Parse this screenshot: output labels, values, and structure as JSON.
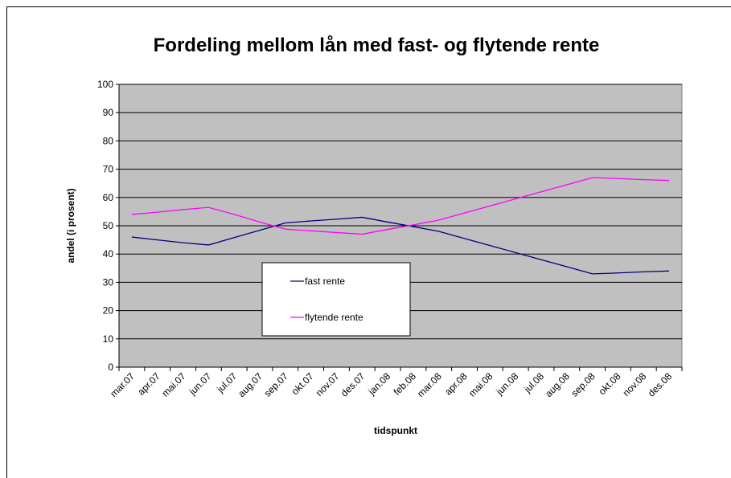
{
  "chart_data": {
    "type": "line",
    "title": "Fordeling mellom lån med fast- og flytende rente",
    "x_label": "tidspunkt",
    "y_label": "andel  (i prosent)",
    "categories": [
      "mar.07",
      "apr.07",
      "mai.07",
      "jun.07",
      "jul.07",
      "aug.07",
      "sep.07",
      "okt.07",
      "nov.07",
      "des.07",
      "jan.08",
      "feb.08",
      "mar.08",
      "apr.08",
      "mai.08",
      "jun.08",
      "jul.08",
      "aug.08",
      "sep.08",
      "okt.08",
      "nov.08",
      "des.08"
    ],
    "series": [
      {
        "name": "fast rente",
        "color": "#000080",
        "values": [
          46,
          45,
          44,
          43.2,
          45.8,
          48.4,
          51,
          51.7,
          52.3,
          53,
          51.3,
          49.7,
          48,
          45.5,
          43,
          40.5,
          38,
          35.5,
          33,
          33.3,
          33.7,
          34
        ]
      },
      {
        "name": "flytende rente",
        "color": "#ff00ff",
        "values": [
          54,
          54.8,
          55.7,
          56.5,
          54,
          51.3,
          48.8,
          48.2,
          47.6,
          47,
          48.7,
          50.3,
          52,
          54.5,
          57,
          59.5,
          62,
          64.5,
          67,
          66.7,
          66.3,
          66
        ]
      }
    ],
    "ylim": [
      0,
      100
    ],
    "yticks": [
      0,
      10,
      20,
      30,
      40,
      50,
      60,
      70,
      80,
      90,
      100
    ],
    "grid": true,
    "plot_background": "#c0c0c0"
  }
}
